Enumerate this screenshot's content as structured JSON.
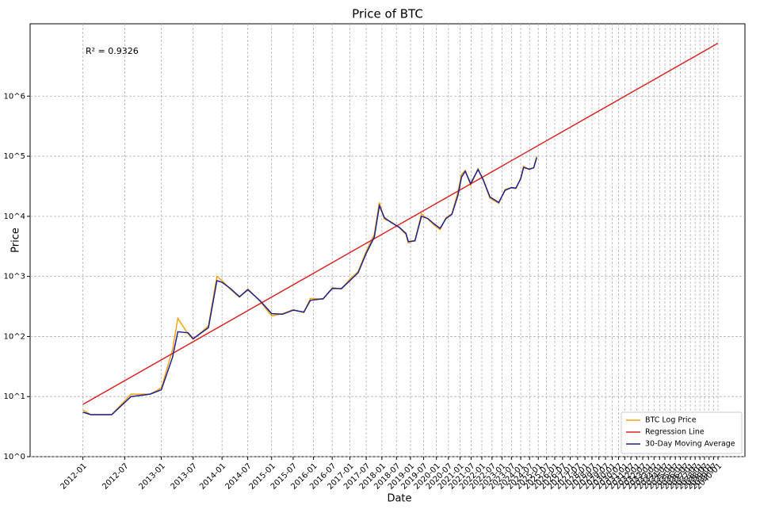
{
  "chart_data": {
    "type": "line",
    "title": "Price of BTC",
    "x_label": "Date",
    "y_label": "Price",
    "annotation": "R² = 0.9326",
    "xscale": "log",
    "yscale": "log",
    "grid": true,
    "legend": "lower right",
    "xlim": [
      900,
      12500
    ],
    "ylim": [
      1,
      16000000
    ],
    "yticks": [
      {
        "value": 1,
        "label": "10^0"
      },
      {
        "value": 10,
        "label": "10^1"
      },
      {
        "value": 100,
        "label": "10^2"
      },
      {
        "value": 1000,
        "label": "10^3"
      },
      {
        "value": 10000,
        "label": "10^4"
      },
      {
        "value": 100000,
        "label": "10^5"
      },
      {
        "value": 1000000,
        "label": "10^6"
      }
    ],
    "xticks": [
      {
        "value": 1093,
        "label": "2012-01"
      },
      {
        "value": 1275,
        "label": "2012-07"
      },
      {
        "value": 1459,
        "label": "2013-01"
      },
      {
        "value": 1640,
        "label": "2013-07"
      },
      {
        "value": 1824,
        "label": "2014-01"
      },
      {
        "value": 2005,
        "label": "2014-07"
      },
      {
        "value": 2189,
        "label": "2015-01"
      },
      {
        "value": 2370,
        "label": "2015-07"
      },
      {
        "value": 2554,
        "label": "2016-01"
      },
      {
        "value": 2736,
        "label": "2016-07"
      },
      {
        "value": 2920,
        "label": "2017-01"
      },
      {
        "value": 3101,
        "label": "2017-07"
      },
      {
        "value": 3285,
        "label": "2018-01"
      },
      {
        "value": 3466,
        "label": "2018-07"
      },
      {
        "value": 3650,
        "label": "2019-01"
      },
      {
        "value": 3831,
        "label": "2019-07"
      },
      {
        "value": 4015,
        "label": "2020-01"
      },
      {
        "value": 4197,
        "label": "2020-07"
      },
      {
        "value": 4381,
        "label": "2021-01"
      },
      {
        "value": 4562,
        "label": "2021-07"
      },
      {
        "value": 4746,
        "label": "2022-01"
      },
      {
        "value": 4927,
        "label": "2022-07"
      },
      {
        "value": 5111,
        "label": "2023-01"
      },
      {
        "value": 5292,
        "label": "2023-07"
      },
      {
        "value": 5476,
        "label": "2024-01"
      },
      {
        "value": 5658,
        "label": "2024-07"
      },
      {
        "value": 5842,
        "label": "2025-01"
      },
      {
        "value": 6023,
        "label": "2025-07"
      },
      {
        "value": 6207,
        "label": "2026-01"
      },
      {
        "value": 6388,
        "label": "2026-07"
      },
      {
        "value": 6572,
        "label": "2027-01"
      },
      {
        "value": 6753,
        "label": "2027-07"
      },
      {
        "value": 6937,
        "label": "2028-01"
      },
      {
        "value": 7119,
        "label": "2028-07"
      },
      {
        "value": 7303,
        "label": "2029-01"
      },
      {
        "value": 7484,
        "label": "2029-07"
      },
      {
        "value": 7668,
        "label": "2030-01"
      },
      {
        "value": 7849,
        "label": "2030-07"
      },
      {
        "value": 8033,
        "label": "2031-01"
      },
      {
        "value": 8214,
        "label": "2031-07"
      },
      {
        "value": 8398,
        "label": "2032-01"
      },
      {
        "value": 8580,
        "label": "2032-07"
      },
      {
        "value": 8764,
        "label": "2033-01"
      },
      {
        "value": 8945,
        "label": "2033-07"
      },
      {
        "value": 9129,
        "label": "2034-01"
      },
      {
        "value": 9310,
        "label": "2034-07"
      },
      {
        "value": 9494,
        "label": "2035-01"
      },
      {
        "value": 9675,
        "label": "2035-07"
      },
      {
        "value": 9859,
        "label": "2036-01"
      },
      {
        "value": 10041,
        "label": "2036-07"
      },
      {
        "value": 10225,
        "label": "2037-01"
      },
      {
        "value": 10406,
        "label": "2037-07"
      },
      {
        "value": 10590,
        "label": "2038-01"
      },
      {
        "value": 10771,
        "label": "2038-07"
      },
      {
        "value": 10955,
        "label": "2039-01"
      },
      {
        "value": 11136,
        "label": "2039-07"
      },
      {
        "value": 11320,
        "label": "2040-01"
      }
    ],
    "series": [
      {
        "name": "BTC Log Price",
        "color": "#f5a313",
        "x": [
          1093,
          1125,
          1215,
          1305,
          1400,
          1459,
          1520,
          1550,
          1610,
          1640,
          1735,
          1790,
          1824,
          1885,
          1945,
          2006,
          2100,
          2190,
          2280,
          2372,
          2465,
          2525,
          2646,
          2738,
          2830,
          2920,
          3010,
          3100,
          3195,
          3255,
          3315,
          3405,
          3500,
          3590,
          3620,
          3710,
          3800,
          3890,
          3980,
          4070,
          4160,
          4250,
          4345,
          4405,
          4465,
          4555,
          4680,
          4770,
          4890,
          5050,
          5170,
          5290,
          5380,
          5475,
          5535,
          5650,
          5745,
          5810
        ],
        "values": [
          6,
          5,
          5,
          11,
          11,
          14,
          60,
          200,
          110,
          90,
          150,
          1000,
          850,
          600,
          450,
          620,
          380,
          220,
          240,
          280,
          250,
          430,
          420,
          650,
          620,
          900,
          1200,
          2600,
          5000,
          17000,
          9000,
          8000,
          6500,
          5000,
          3600,
          4000,
          11000,
          9000,
          7200,
          6000,
          9500,
          11000,
          25000,
          50000,
          58000,
          33000,
          62000,
          40000,
          20000,
          16500,
          28000,
          30000,
          29000,
          43000,
          68000,
          60000,
          65000,
          100000
        ]
      },
      {
        "name": "Regression Line",
        "color": "#d62728",
        "x": [
          1093,
          11320
        ],
        "values": [
          7.4,
          7600000
        ]
      },
      {
        "name": "30-Day Moving Average",
        "color": "#1f1f8a",
        "x": [
          1093,
          1125,
          1215,
          1305,
          1400,
          1459,
          1520,
          1550,
          1610,
          1640,
          1735,
          1790,
          1824,
          1885,
          1945,
          2006,
          2100,
          2190,
          2280,
          2372,
          2465,
          2525,
          2646,
          2738,
          2830,
          2920,
          3010,
          3100,
          3195,
          3255,
          3315,
          3405,
          3500,
          3590,
          3620,
          3710,
          3800,
          3890,
          3980,
          4070,
          4160,
          4250,
          4345,
          4405,
          4465,
          4555,
          4680,
          4770,
          4890,
          5050,
          5170,
          5290,
          5380,
          5475,
          5535,
          5650,
          5745,
          5810
        ],
        "values": [
          5.5,
          5,
          5,
          10,
          11,
          13,
          45,
          120,
          115,
          92,
          140,
          850,
          800,
          620,
          460,
          600,
          390,
          240,
          235,
          275,
          255,
          400,
          425,
          630,
          625,
          850,
          1150,
          2400,
          4500,
          15000,
          9500,
          7800,
          6600,
          5200,
          3800,
          3900,
          10000,
          9200,
          7500,
          6300,
          9200,
          10800,
          22000,
          45000,
          56000,
          35000,
          60000,
          41000,
          21000,
          17000,
          27000,
          30000,
          29500,
          42000,
          65000,
          61000,
          64000,
          95000
        ]
      }
    ]
  }
}
